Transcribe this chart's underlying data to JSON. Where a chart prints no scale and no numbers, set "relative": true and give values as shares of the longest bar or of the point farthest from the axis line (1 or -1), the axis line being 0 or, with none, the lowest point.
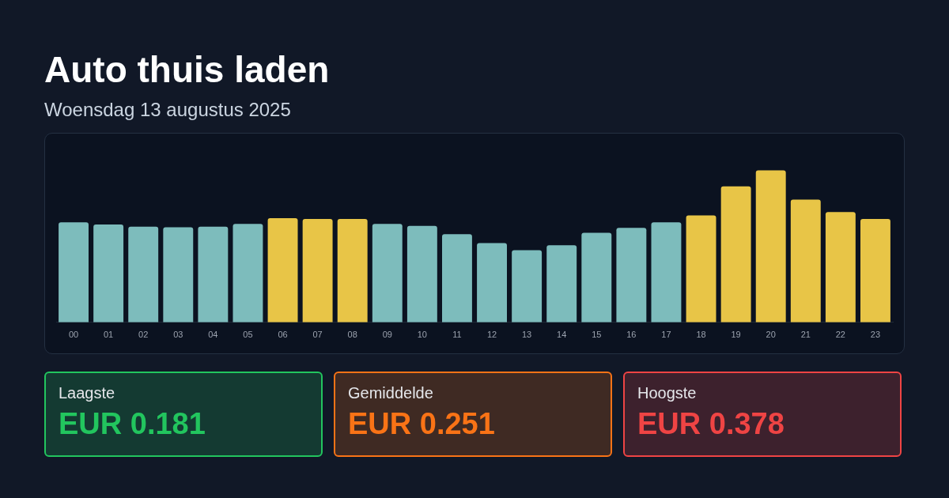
{
  "chart_data": [
    {
      "type": "bar",
      "title": "Auto thuis laden",
      "subtitle": "Woensdag 13 augustus 2025",
      "relative": true,
      "legend": false,
      "categories": [
        "00",
        "01",
        "02",
        "03",
        "04",
        "05",
        "06",
        "07",
        "08",
        "09",
        "10",
        "11",
        "12",
        "13",
        "14",
        "15",
        "16",
        "17",
        "18",
        "19",
        "20",
        "21",
        "22",
        "23"
      ],
      "values": [
        0.658,
        0.644,
        0.63,
        0.626,
        0.63,
        0.648,
        0.685,
        0.68,
        0.68,
        0.648,
        0.635,
        0.58,
        0.521,
        0.475,
        0.507,
        0.589,
        0.621,
        0.658,
        0.703,
        0.895,
        1,
        0.808,
        0.726,
        0.68
      ],
      "colors": [
        "#7dbcbc",
        "#7dbcbc",
        "#7dbcbc",
        "#7dbcbc",
        "#7dbcbc",
        "#7dbcbc",
        "#e8c547",
        "#e8c547",
        "#e8c547",
        "#7dbcbc",
        "#7dbcbc",
        "#7dbcbc",
        "#7dbcbc",
        "#7dbcbc",
        "#7dbcbc",
        "#7dbcbc",
        "#7dbcbc",
        "#7dbcbc",
        "#e8c547",
        "#e8c547",
        "#e8c547",
        "#e8c547",
        "#e8c547",
        "#e8c547"
      ]
    },
    {
      "type": "other",
      "title": "Laagste",
      "annotations": [
        "EUR 0.181"
      ],
      "color": "#22c55e"
    },
    {
      "type": "other",
      "title": "Gemiddelde",
      "annotations": [
        "EUR 0.251"
      ],
      "color": "#f97316"
    },
    {
      "type": "other",
      "title": "Hoogste",
      "annotations": [
        "EUR 0.378"
      ],
      "color": "#ef4444"
    }
  ]
}
